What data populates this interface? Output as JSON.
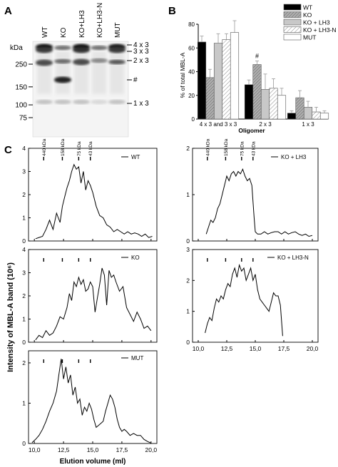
{
  "panels": {
    "a": "A",
    "b": "B",
    "c": "C"
  },
  "blot": {
    "lanes": [
      "WT",
      "KO",
      "KO+LH3",
      "KO+LH3-N",
      "MUT"
    ],
    "kda_label": "kDa",
    "markers": [
      {
        "kda": 250,
        "label": "250"
      },
      {
        "kda": 150,
        "label": "150"
      },
      {
        "kda": 100,
        "label": "100"
      },
      {
        "kda": 75,
        "label": "75"
      }
    ],
    "band_labels": [
      "4 x 3",
      "3 x 3",
      "2 x 3",
      "#",
      "1 x 3"
    ]
  },
  "chart_data": [
    {
      "type": "bar",
      "ylabel": "% of total MBL-A",
      "xlabel": "Oligomer",
      "categories": [
        "4 x 3 and 3 x 3",
        "2 x 3",
        "1 x 3"
      ],
      "ylim": [
        0,
        80
      ],
      "yticks": [
        0,
        20,
        40,
        60,
        80
      ],
      "legend": "top-right",
      "annotation": {
        "text": "#",
        "category": "2 x 3",
        "series": "KO"
      },
      "series": [
        {
          "name": "WT",
          "values": [
            65,
            29,
            5
          ],
          "errors": [
            5,
            4,
            2
          ],
          "color": "#000000",
          "pattern": "solid"
        },
        {
          "name": "KO",
          "values": [
            35,
            46,
            18
          ],
          "errors": [
            7,
            3,
            6
          ],
          "color": "#a0a0a0",
          "pattern": "hatch-dense"
        },
        {
          "name": "KO + LH3",
          "values": [
            64,
            25,
            10
          ],
          "errors": [
            8,
            13,
            5
          ],
          "color": "#c8c8c8",
          "pattern": "solid"
        },
        {
          "name": "KO + LH3-N",
          "values": [
            67,
            26,
            6
          ],
          "errors": [
            5,
            8,
            4
          ],
          "color": "#ffffff",
          "pattern": "hatch"
        },
        {
          "name": "MUT",
          "values": [
            73,
            20,
            5
          ],
          "errors": [
            10,
            6,
            2
          ],
          "color": "#ffffff",
          "pattern": "solid"
        }
      ]
    },
    {
      "type": "line",
      "name": "WT",
      "xlim": [
        9.5,
        20.5
      ],
      "ylim": [
        0,
        4
      ],
      "yticks": [
        0,
        1,
        2,
        3,
        4
      ],
      "calibration": [
        "440 kDa",
        "158 kDa",
        "75 kDa",
        "43 kDa"
      ],
      "x": [
        10.1,
        10.4,
        10.7,
        11.0,
        11.3,
        11.6,
        11.9,
        12.2,
        12.4,
        12.6,
        12.8,
        13.0,
        13.2,
        13.4,
        13.6,
        13.8,
        14.0,
        14.2,
        14.4,
        14.6,
        14.8,
        15.0,
        15.3,
        15.6,
        15.9,
        16.2,
        16.5,
        16.8,
        17.1,
        17.4,
        17.7,
        18.0,
        18.3,
        18.6,
        18.9,
        19.2,
        19.5,
        19.8,
        20.1
      ],
      "y": [
        0.1,
        0.15,
        0.2,
        0.5,
        0.9,
        0.5,
        1.2,
        0.8,
        1.5,
        1.9,
        2.3,
        2.6,
        3.0,
        3.3,
        3.1,
        3.2,
        2.5,
        3.0,
        2.2,
        2.6,
        2.4,
        2.1,
        1.5,
        1.1,
        1.0,
        0.7,
        0.6,
        0.4,
        0.5,
        0.4,
        0.3,
        0.4,
        0.3,
        0.35,
        0.3,
        0.2,
        0.3,
        0.15,
        0.2
      ]
    },
    {
      "type": "line",
      "name": "KO + LH3",
      "xlim": [
        9.5,
        20.5
      ],
      "ylim": [
        0,
        2
      ],
      "yticks": [
        0,
        1,
        2
      ],
      "calibration": [
        "440 kDa",
        "158 kDa",
        "75 kDa",
        "43 kDa"
      ],
      "x": [
        10.7,
        10.9,
        11.1,
        11.3,
        11.5,
        11.7,
        11.9,
        12.1,
        12.3,
        12.5,
        12.7,
        12.9,
        13.1,
        13.3,
        13.5,
        13.7,
        13.9,
        14.1,
        14.3,
        14.5,
        14.7,
        14.9,
        15.0,
        15.2,
        15.5,
        15.8,
        16.1,
        16.4,
        16.7,
        17.0,
        17.3,
        17.6,
        17.9,
        18.2,
        18.5,
        18.8,
        19.1,
        19.4,
        19.7,
        20.0
      ],
      "y": [
        0.15,
        0.3,
        0.45,
        0.4,
        0.5,
        0.7,
        0.8,
        1.0,
        1.2,
        1.4,
        1.3,
        1.45,
        1.5,
        1.4,
        1.5,
        1.45,
        1.55,
        1.4,
        1.3,
        1.35,
        1.2,
        0.5,
        0.2,
        0.15,
        0.15,
        0.2,
        0.15,
        0.18,
        0.2,
        0.2,
        0.15,
        0.2,
        0.15,
        0.18,
        0.2,
        0.15,
        0.12,
        0.15,
        0.1,
        0.12
      ]
    },
    {
      "type": "line",
      "name": "KO",
      "xlim": [
        9.5,
        20.5
      ],
      "ylim": [
        0,
        4
      ],
      "yticks": [
        0,
        1,
        2,
        3,
        4
      ],
      "x": [
        10.1,
        10.4,
        10.7,
        11.0,
        11.3,
        11.6,
        11.9,
        12.2,
        12.5,
        12.8,
        13.0,
        13.2,
        13.4,
        13.6,
        13.8,
        14.0,
        14.2,
        14.4,
        14.6,
        14.8,
        15.0,
        15.2,
        15.4,
        15.6,
        15.8,
        16.0,
        16.2,
        16.4,
        16.6,
        16.8,
        17.0,
        17.3,
        17.6,
        17.9,
        18.2,
        18.5,
        18.8,
        19.1,
        19.4,
        19.7,
        20.0
      ],
      "y": [
        0.1,
        0.3,
        0.2,
        0.5,
        0.3,
        0.4,
        0.7,
        1.1,
        1.0,
        1.5,
        2.1,
        1.8,
        2.6,
        2.4,
        2.8,
        2.5,
        2.7,
        2.2,
        2.3,
        2.6,
        2.4,
        1.3,
        1.9,
        2.5,
        3.2,
        2.9,
        1.6,
        3.1,
        2.8,
        2.9,
        2.6,
        2.2,
        2.4,
        1.5,
        1.2,
        0.9,
        1.3,
        1.0,
        0.6,
        0.7,
        0.5
      ]
    },
    {
      "type": "line",
      "name": "KO + LH3-N",
      "xlim": [
        9.5,
        20.5
      ],
      "ylim": [
        0,
        3
      ],
      "yticks": [
        0,
        1,
        2,
        3
      ],
      "x": [
        10.6,
        10.8,
        11.0,
        11.2,
        11.4,
        11.6,
        11.8,
        12.0,
        12.2,
        12.4,
        12.6,
        12.8,
        13.0,
        13.2,
        13.4,
        13.6,
        13.8,
        14.0,
        14.2,
        14.4,
        14.6,
        14.8,
        15.0,
        15.2,
        15.4,
        15.6,
        15.8,
        16.0,
        16.2,
        16.4,
        16.6,
        16.8,
        17.0,
        17.2,
        17.4
      ],
      "y": [
        0.3,
        0.6,
        0.8,
        0.7,
        1.1,
        1.4,
        1.3,
        1.5,
        1.4,
        1.7,
        1.9,
        1.8,
        2.2,
        2.4,
        2.1,
        2.5,
        2.3,
        2.4,
        2.0,
        2.2,
        2.4,
        2.0,
        2.2,
        1.7,
        1.4,
        1.3,
        1.2,
        1.1,
        1.0,
        1.3,
        1.6,
        1.5,
        1.5,
        1.2,
        0.2
      ]
    },
    {
      "type": "line",
      "name": "MUT",
      "xlim": [
        9.5,
        20.5
      ],
      "ylim": [
        0,
        2.3
      ],
      "yticks": [
        0,
        1,
        2
      ],
      "xticks": [
        10.0,
        12.5,
        15.0,
        17.5,
        20.0
      ],
      "xtick_labels": [
        "10,0",
        "12,5",
        "15,0",
        "17,5",
        "20,0"
      ],
      "xlabel": "Elution volume (ml)",
      "x": [
        9.8,
        10.1,
        10.4,
        10.7,
        11.0,
        11.3,
        11.6,
        11.9,
        12.1,
        12.3,
        12.5,
        12.7,
        12.9,
        13.1,
        13.3,
        13.5,
        13.7,
        13.9,
        14.1,
        14.3,
        14.5,
        14.7,
        14.9,
        15.1,
        15.3,
        15.5,
        15.7,
        15.9,
        16.1,
        16.3,
        16.5,
        16.7,
        16.9,
        17.1,
        17.3,
        17.5,
        17.7,
        17.9,
        18.2,
        18.5,
        18.8,
        19.1,
        19.4,
        19.7,
        20.0
      ],
      "y": [
        0.02,
        0.1,
        0.2,
        0.35,
        0.55,
        0.8,
        1.0,
        1.3,
        1.7,
        2.1,
        1.6,
        1.9,
        1.5,
        1.7,
        1.2,
        1.4,
        1.0,
        1.1,
        0.7,
        0.9,
        0.8,
        1.0,
        0.85,
        0.6,
        0.4,
        0.45,
        0.5,
        0.55,
        0.8,
        1.0,
        1.2,
        1.1,
        0.9,
        0.6,
        0.4,
        0.3,
        0.35,
        0.3,
        0.2,
        0.25,
        0.2,
        0.2,
        0.1,
        0.05,
        0.01
      ]
    }
  ],
  "shared_ylabel": "Intensity of MBL-A band (10⁶)"
}
